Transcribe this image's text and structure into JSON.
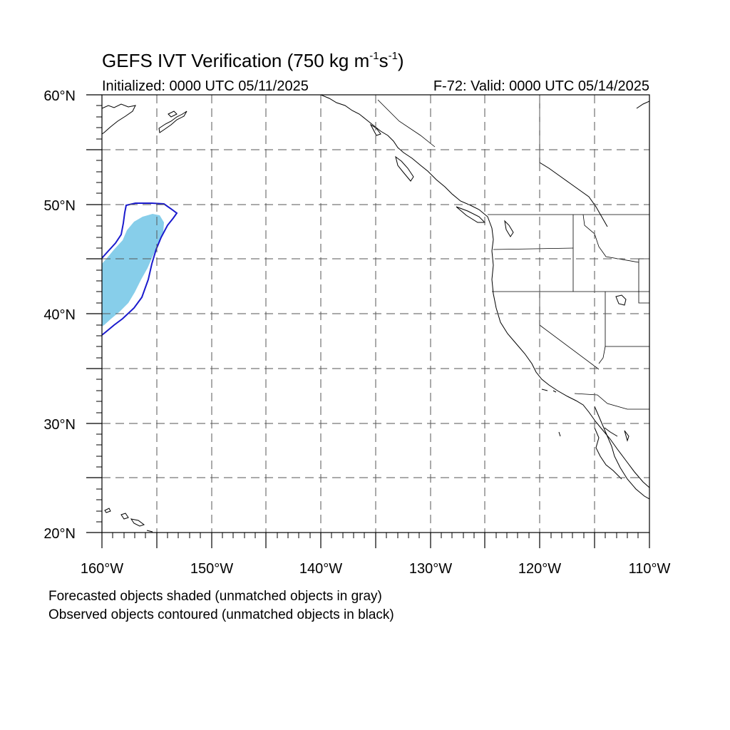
{
  "header": {
    "title_main": "GEFS IVT Verification (750 kg m",
    "title_exp1": "-1",
    "title_mid": "s",
    "title_exp2": "-1",
    "title_end": ")",
    "initialized": "Initialized: 0000 UTC 05/11/2025",
    "valid": "F-72: Valid: 0000 UTC 05/14/2025"
  },
  "axes": {
    "lat_labels": [
      "60°N",
      "50°N",
      "40°N",
      "30°N",
      "20°N"
    ],
    "lon_labels": [
      "160°W",
      "150°W",
      "140°W",
      "130°W",
      "120°W",
      "110°W"
    ],
    "lat_range": [
      20,
      60
    ],
    "lon_range": [
      -160,
      -110
    ],
    "grid": "dashed every 5 degrees"
  },
  "legend": {
    "forecast_note": "Forecasted objects shaded (unmatched objects in gray)",
    "observed_note": "Observed objects contoured (unmatched objects in black)"
  },
  "colors": {
    "forecast_fill": "#87ceea",
    "observed_contour": "#1a1acd",
    "coastline": "#000000",
    "grid": "#555555"
  }
}
